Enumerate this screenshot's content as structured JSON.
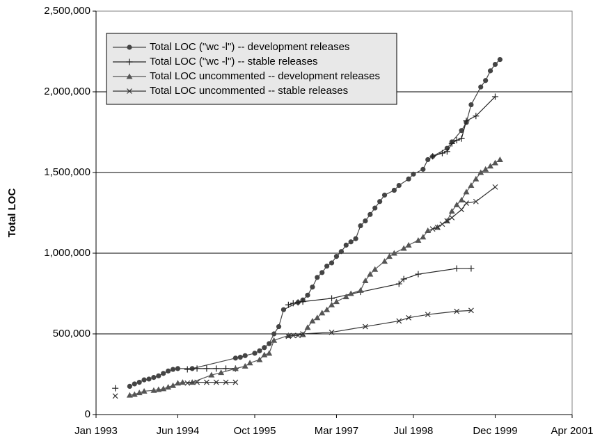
{
  "chart_data": {
    "type": "line",
    "ylabel": "Total LOC",
    "xlim": [
      "1993-01",
      "2001-04"
    ],
    "xticks": [
      {
        "value": "1993-01",
        "label": "Jan 1993"
      },
      {
        "value": "1994-06",
        "label": "Jun 1994"
      },
      {
        "value": "1995-10",
        "label": "Oct 1995"
      },
      {
        "value": "1997-03",
        "label": "Mar 1997"
      },
      {
        "value": "1998-07",
        "label": "Jul 1998"
      },
      {
        "value": "1999-12",
        "label": "Dec 1999"
      },
      {
        "value": "2001-04",
        "label": "Apr 2001"
      }
    ],
    "ylim": [
      0,
      2500000
    ],
    "yticks": [
      0,
      {
        "value": 500000,
        "label": "500,000"
      },
      {
        "value": 1000000,
        "label": "1,000,000"
      },
      {
        "value": 1500000,
        "label": "1,500,000"
      },
      {
        "value": 2000000,
        "label": "2,000,000"
      },
      {
        "value": 2500000,
        "label": "2,500,000"
      }
    ],
    "grid": true,
    "legend": "upper left",
    "series": [
      {
        "name": "Total LOC (\"wc -l\") -- development releases",
        "color": "#444444",
        "marker": "circle",
        "x": [
          "1993-08",
          "1993-09",
          "1993-10",
          "1993-11",
          "1993-12",
          "1994-01",
          "1994-02",
          "1994-03",
          "1994-04",
          "1994-05",
          "1994-06",
          "1994-09",
          "1995-06",
          "1995-07",
          "1995-08",
          "1995-10",
          "1995-11",
          "1995-12",
          "1996-01",
          "1996-02",
          "1996-03",
          "1996-04",
          "1996-07",
          "1996-08",
          "1996-09",
          "1996-10",
          "1996-11",
          "1996-12",
          "1997-01",
          "1997-02",
          "1997-03",
          "1997-04",
          "1997-05",
          "1997-06",
          "1997-07",
          "1997-08",
          "1997-09",
          "1997-10",
          "1997-11",
          "1997-12",
          "1998-01",
          "1998-03",
          "1998-04",
          "1998-06",
          "1998-07",
          "1998-09",
          "1998-10",
          "1998-11",
          "1999-02",
          "1999-03",
          "1999-05",
          "1999-06",
          "1999-07",
          "1999-09",
          "1999-10",
          "1999-11",
          "1999-12",
          "2000-01"
        ],
        "values": [
          175000,
          190000,
          200000,
          215000,
          220000,
          230000,
          240000,
          255000,
          270000,
          280000,
          285000,
          285000,
          350000,
          355000,
          365000,
          380000,
          395000,
          415000,
          440000,
          500000,
          545000,
          650000,
          695000,
          710000,
          740000,
          790000,
          850000,
          880000,
          920000,
          940000,
          980000,
          1010000,
          1050000,
          1070000,
          1090000,
          1170000,
          1200000,
          1240000,
          1280000,
          1320000,
          1360000,
          1390000,
          1420000,
          1460000,
          1490000,
          1520000,
          1580000,
          1600000,
          1650000,
          1690000,
          1760000,
          1810000,
          1920000,
          2030000,
          2070000,
          2130000,
          2170000,
          2200000
        ]
      },
      {
        "name": "Total LOC (\"wc -l\") -- stable releases",
        "color": "#222222",
        "marker": "plus",
        "x": [
          "1993-05",
          null,
          "1994-08",
          "1994-10",
          "1994-12",
          "1995-02",
          "1995-04",
          "1995-06",
          null,
          "1996-05",
          "1996-06",
          "1996-07",
          "1996-08",
          "1997-02",
          "1997-08",
          "1998-04",
          "1998-05",
          "1998-08",
          "1999-04",
          "1999-07",
          null,
          "1998-11",
          "1999-01",
          "1999-02",
          "1999-03",
          "1999-04",
          "1999-05",
          "1999-06",
          "1999-08",
          "1999-12"
        ],
        "values": [
          163000,
          null,
          280000,
          285000,
          285000,
          285000,
          285000,
          285000,
          null,
          680000,
          690000,
          695000,
          700000,
          720000,
          760000,
          810000,
          840000,
          870000,
          905000,
          905000,
          null,
          1600000,
          1620000,
          1630000,
          1680000,
          1700000,
          1710000,
          1820000,
          1850000,
          1970000
        ]
      },
      {
        "name": "Total LOC uncommented -- development releases",
        "color": "#555555",
        "marker": "triangle",
        "x": [
          "1993-08",
          "1993-09",
          "1993-10",
          "1993-11",
          "1994-01",
          "1994-02",
          "1994-03",
          "1994-04",
          "1994-05",
          "1994-06",
          "1994-07",
          "1994-09",
          "1995-01",
          "1995-03",
          "1995-06",
          "1995-08",
          "1995-09",
          "1995-11",
          "1995-12",
          "1996-01",
          "1996-02",
          "1996-05",
          "1996-08",
          "1996-09",
          "1996-10",
          "1996-11",
          "1996-12",
          "1997-01",
          "1997-02",
          "1997-03",
          "1997-05",
          "1997-06",
          "1997-08",
          "1997-09",
          "1997-10",
          "1997-11",
          "1998-01",
          "1998-02",
          "1998-03",
          "1998-05",
          "1998-06",
          "1998-08",
          "1998-09",
          "1998-10",
          "1998-12",
          "1999-02",
          "1999-03",
          "1999-04",
          "1999-05",
          "1999-06",
          "1999-07",
          "1999-08",
          "1999-09",
          "1999-10",
          "1999-11",
          "1999-12",
          "2000-01"
        ],
        "values": [
          120000,
          125000,
          135000,
          145000,
          150000,
          155000,
          160000,
          170000,
          180000,
          195000,
          200000,
          200000,
          245000,
          260000,
          285000,
          300000,
          320000,
          340000,
          370000,
          380000,
          460000,
          490000,
          495000,
          540000,
          580000,
          600000,
          630000,
          650000,
          680000,
          700000,
          730000,
          750000,
          770000,
          830000,
          870000,
          900000,
          950000,
          980000,
          1000000,
          1030000,
          1050000,
          1080000,
          1100000,
          1140000,
          1160000,
          1200000,
          1260000,
          1300000,
          1330000,
          1380000,
          1420000,
          1460000,
          1500000,
          1520000,
          1540000,
          1560000,
          1580000
        ]
      },
      {
        "name": "Total LOC uncommented -- stable releases",
        "color": "#333333",
        "marker": "cross",
        "x": [
          "1993-05",
          null,
          "1994-08",
          "1994-10",
          "1994-12",
          "1995-02",
          "1995-04",
          "1995-06",
          null,
          "1996-05",
          "1996-06",
          "1996-07",
          "1996-08",
          "1997-02",
          "1997-09",
          "1998-04",
          "1998-06",
          "1998-10",
          "1999-04",
          "1999-07",
          null,
          "1998-11",
          "1998-12",
          "1999-01",
          "1999-02",
          "1999-03",
          "1999-05",
          "1999-06",
          "1999-08",
          "1999-12"
        ],
        "values": [
          115000,
          null,
          195000,
          200000,
          200000,
          200000,
          200000,
          200000,
          null,
          485000,
          490000,
          490000,
          500000,
          510000,
          545000,
          580000,
          600000,
          620000,
          640000,
          645000,
          null,
          1150000,
          1160000,
          1180000,
          1200000,
          1220000,
          1270000,
          1310000,
          1320000,
          1410000
        ]
      }
    ]
  }
}
